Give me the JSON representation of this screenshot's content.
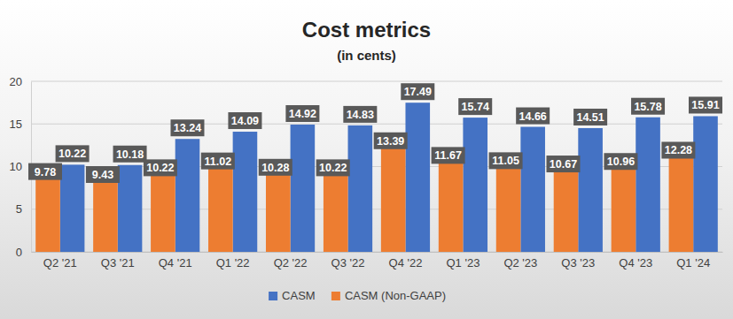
{
  "chart_data": {
    "type": "bar",
    "title": "Cost metrics",
    "subtitle": "(in cents)",
    "categories": [
      "Q2 '21",
      "Q3 '21",
      "Q4 '21",
      "Q1 '22",
      "Q2 '22",
      "Q3 '22",
      "Q4 '22",
      "Q1 '23",
      "Q2 '23",
      "Q3 '23",
      "Q4 '23",
      "Q1 '24"
    ],
    "series": [
      {
        "name": "CASM",
        "color": "#4472c4",
        "values": [
          10.22,
          10.18,
          13.24,
          14.09,
          14.92,
          14.83,
          17.49,
          15.74,
          14.66,
          14.51,
          15.78,
          15.91
        ]
      },
      {
        "name": "CASM (Non-GAAP)",
        "color": "#ed7d31",
        "values": [
          9.78,
          9.43,
          10.22,
          11.02,
          10.28,
          10.22,
          13.39,
          11.67,
          11.05,
          10.67,
          10.96,
          12.28
        ]
      }
    ],
    "ylim": [
      0,
      20
    ],
    "yticks": [
      0,
      5,
      10,
      15,
      20
    ],
    "grid": true,
    "legend": "bottom",
    "data_labels": true
  }
}
